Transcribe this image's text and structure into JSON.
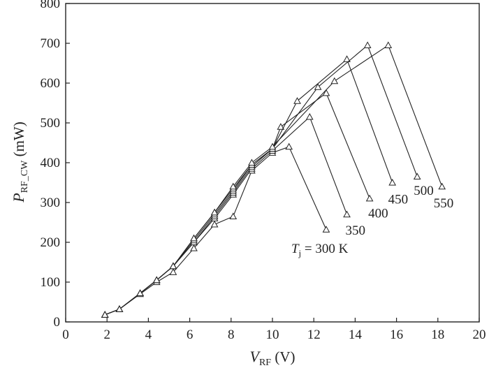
{
  "chart_data": {
    "type": "line",
    "xlabel": {
      "main": "V",
      "sub": "RF",
      "unit": " (V)"
    },
    "ylabel": {
      "main": "P",
      "sub": "RF_CW",
      "unit": " (mW)"
    },
    "xlim": [
      0,
      20
    ],
    "ylim": [
      0,
      800
    ],
    "xticks": [
      0,
      2,
      4,
      6,
      8,
      10,
      12,
      14,
      16,
      18,
      20
    ],
    "yticks": [
      0,
      100,
      200,
      300,
      400,
      500,
      600,
      700,
      800
    ],
    "xtick_labels": [
      "0",
      "2",
      "4",
      "6",
      "8",
      "10",
      "12",
      "14",
      "16",
      "18",
      "20"
    ],
    "ytick_labels": [
      "0",
      "100",
      "200",
      "300",
      "400",
      "500",
      "600",
      "700",
      "800"
    ],
    "grid": false,
    "marker": "triangle",
    "series": [
      {
        "label_main": "T",
        "label_sub": "j",
        "label_text": " = 300 K",
        "x": [
          1.9,
          2.6,
          3.6,
          4.4,
          5.2,
          6.2,
          7.2,
          8.1,
          9.0,
          10.0,
          10.8,
          12.6
        ],
        "y": [
          18,
          32,
          70,
          100,
          125,
          185,
          245,
          265,
          380,
          425,
          440,
          232
        ]
      },
      {
        "label_main": "",
        "label_sub": "",
        "label_text": "350",
        "x": [
          1.9,
          2.6,
          3.6,
          4.4,
          5.2,
          6.2,
          7.2,
          8.1,
          9.0,
          10.0,
          11.8,
          13.6
        ],
        "y": [
          18,
          32,
          72,
          105,
          140,
          200,
          260,
          320,
          385,
          430,
          515,
          270
        ]
      },
      {
        "label_main": "",
        "label_sub": "",
        "label_text": "400",
        "x": [
          1.9,
          2.6,
          3.6,
          4.4,
          5.2,
          6.2,
          7.2,
          8.1,
          9.0,
          10.0,
          10.4,
          12.6,
          14.7
        ],
        "y": [
          18,
          32,
          72,
          105,
          140,
          200,
          265,
          325,
          390,
          435,
          490,
          575,
          310
        ]
      },
      {
        "label_main": "",
        "label_sub": "",
        "label_text": "450",
        "x": [
          1.9,
          2.6,
          3.6,
          4.4,
          5.2,
          6.2,
          7.2,
          8.1,
          9.0,
          10.0,
          11.2,
          13.6,
          15.8
        ],
        "y": [
          18,
          32,
          72,
          105,
          140,
          205,
          270,
          330,
          395,
          435,
          555,
          660,
          350
        ]
      },
      {
        "label_main": "",
        "label_sub": "",
        "label_text": "500",
        "x": [
          1.9,
          2.6,
          3.6,
          4.4,
          5.2,
          6.2,
          7.2,
          8.1,
          9.0,
          10.0,
          12.2,
          14.6,
          17.0
        ],
        "y": [
          18,
          32,
          72,
          105,
          140,
          210,
          275,
          335,
          395,
          435,
          590,
          695,
          365
        ]
      },
      {
        "label_main": "",
        "label_sub": "",
        "label_text": "550",
        "x": [
          1.9,
          2.6,
          3.6,
          4.4,
          5.2,
          6.2,
          7.2,
          8.1,
          9.0,
          10.0,
          13.0,
          15.6,
          18.2
        ],
        "y": [
          18,
          32,
          72,
          105,
          140,
          210,
          275,
          340,
          400,
          440,
          605,
          695,
          340
        ]
      }
    ]
  }
}
